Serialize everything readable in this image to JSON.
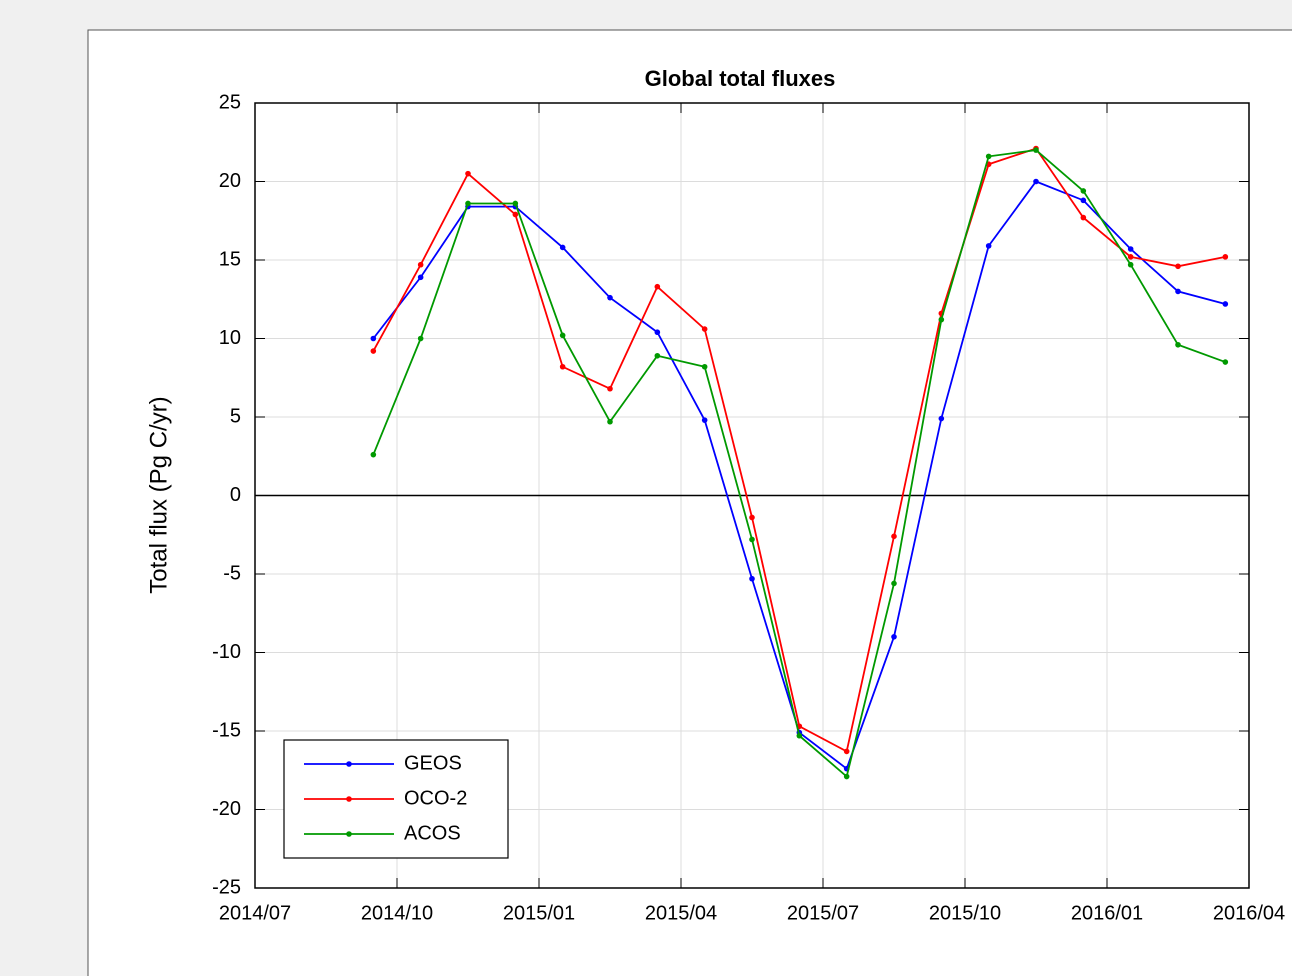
{
  "chart_data": {
    "type": "line",
    "title": "Global total fluxes",
    "ylabel": "Total flux (Pg C/yr)",
    "x": [
      "2014-09",
      "2014-10",
      "2014-11",
      "2014-12",
      "2015-01",
      "2015-02",
      "2015-03",
      "2015-04",
      "2015-05",
      "2015-06",
      "2015-07",
      "2015-08",
      "2015-09",
      "2015-10",
      "2015-11",
      "2015-12",
      "2016-01",
      "2016-02",
      "2016-03"
    ],
    "xlim": [
      "2014-07",
      "2016-04"
    ],
    "xticks": [
      {
        "value": "2014-07",
        "label": "2014/07"
      },
      {
        "value": "2014-10",
        "label": "2014/10"
      },
      {
        "value": "2015-01",
        "label": "2015/01"
      },
      {
        "value": "2015-04",
        "label": "2015/04"
      },
      {
        "value": "2015-07",
        "label": "2015/07"
      },
      {
        "value": "2015-10",
        "label": "2015/10"
      },
      {
        "value": "2016-01",
        "label": "2016/01"
      },
      {
        "value": "2016-04",
        "label": "2016/04"
      }
    ],
    "ylim": [
      -25,
      25
    ],
    "yticks": [
      -25,
      -20,
      -15,
      -10,
      -5,
      0,
      5,
      10,
      15,
      20,
      25
    ],
    "grid": true,
    "legend": "lower left",
    "series": [
      {
        "name": "GEOS",
        "color": "#0000ff",
        "values": [
          10.0,
          13.9,
          18.4,
          18.4,
          15.8,
          12.6,
          10.4,
          4.8,
          -5.3,
          -15.1,
          -17.4,
          -9.0,
          4.9,
          15.9,
          20.0,
          18.8,
          15.7,
          13.0,
          12.2
        ]
      },
      {
        "name": "OCO-2",
        "color": "#ff0000",
        "values": [
          9.2,
          14.7,
          20.5,
          17.9,
          8.2,
          6.8,
          13.3,
          10.6,
          -1.4,
          -14.7,
          -16.3,
          -2.6,
          11.6,
          21.1,
          22.1,
          17.7,
          15.2,
          14.6,
          15.2
        ]
      },
      {
        "name": "ACOS",
        "color": "#009900",
        "values": [
          2.6,
          10.0,
          18.6,
          18.6,
          10.2,
          4.7,
          8.9,
          8.2,
          -2.8,
          -15.3,
          -17.9,
          -5.6,
          11.2,
          21.6,
          22.0,
          19.4,
          14.7,
          9.6,
          8.5
        ]
      }
    ]
  }
}
